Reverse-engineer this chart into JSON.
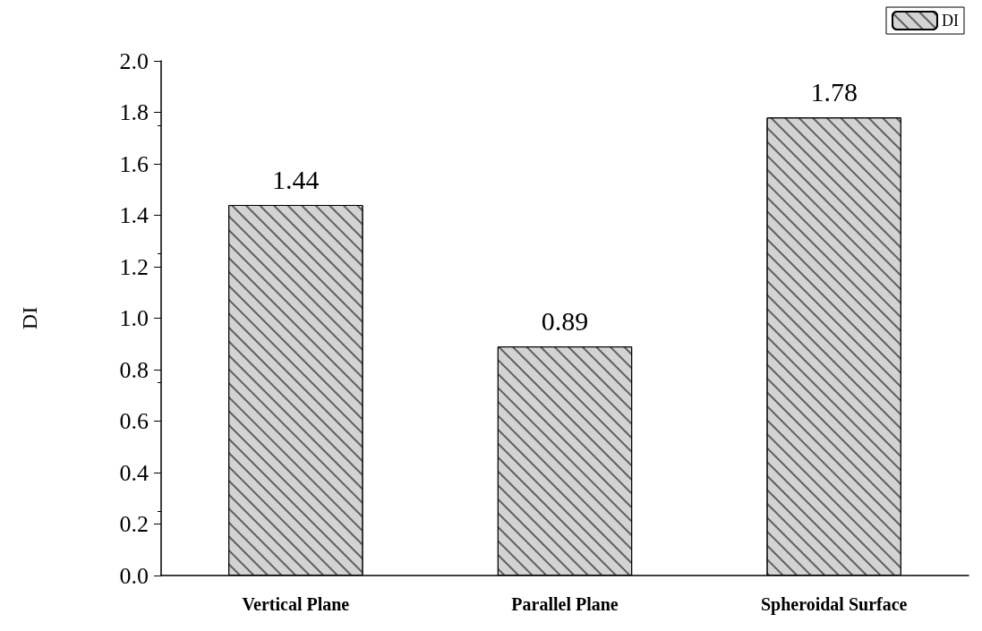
{
  "chart_data": {
    "type": "bar",
    "ylabel": "DI",
    "categories": [
      "Vertical Plane",
      "Parallel Plane",
      "Spheroidal Surface"
    ],
    "series": [
      {
        "name": "DI",
        "color": "#d3d3d3",
        "values": [
          1.44,
          0.89,
          1.78
        ]
      }
    ],
    "ylim": [
      0,
      2.0
    ],
    "yticks": [
      {
        "value": 0,
        "label": "0.0"
      },
      {
        "value": 0.2,
        "label": "0.2"
      },
      {
        "value": 0.4,
        "label": "0.4"
      },
      {
        "value": 0.6,
        "label": "0.6"
      },
      {
        "value": 0.8,
        "label": "0.8"
      },
      {
        "value": 1.0,
        "label": "1.0"
      },
      {
        "value": 1.2,
        "label": "1.2"
      },
      {
        "value": 1.4,
        "label": "1.4"
      },
      {
        "value": 1.6,
        "label": "1.6"
      },
      {
        "value": 1.8,
        "label": "1.8"
      },
      {
        "value": 2.0,
        "label": "2.0"
      }
    ],
    "data_labels": true,
    "grid": false,
    "legend": "top right"
  }
}
